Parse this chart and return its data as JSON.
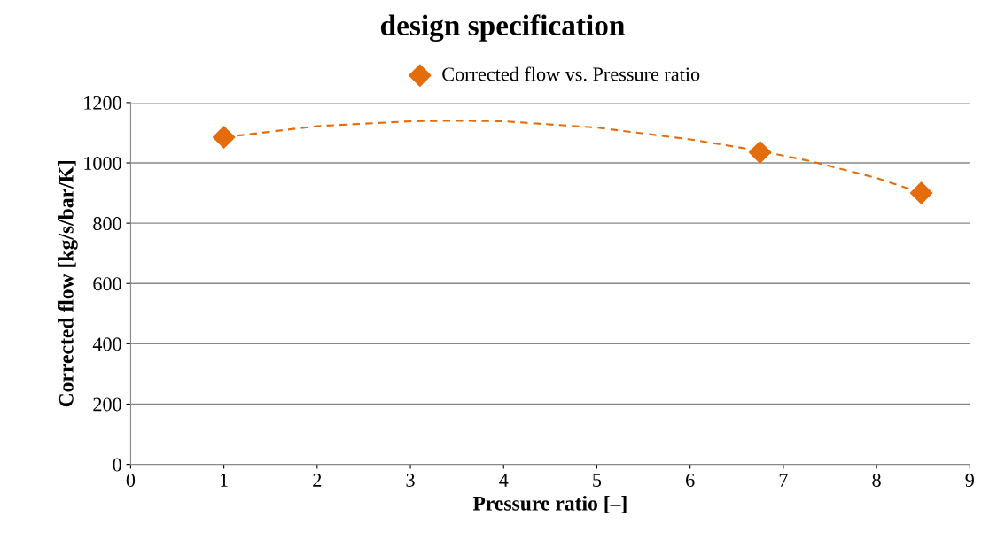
{
  "chart_data": {
    "type": "scatter",
    "title": "design specification",
    "xlabel": "Pressure ratio [–]",
    "ylabel": "Corrected flow [kg/s/bar/K]",
    "series": [
      {
        "name": "Corrected flow vs. Pressure ratio",
        "color": "#e46c0a",
        "marker": "diamond",
        "x": [
          1,
          6.75,
          8.48
        ],
        "values": [
          1085,
          1035,
          900
        ]
      },
      {
        "type": "line",
        "color": "#e46c0a",
        "line_style": "dashed",
        "x": [
          1,
          2,
          3,
          3.5,
          4,
          5,
          6,
          6.75,
          7.3,
          8,
          8.48
        ],
        "values": [
          1085,
          1122,
          1138,
          1140,
          1138,
          1117,
          1078,
          1040,
          1005,
          950,
          900
        ]
      }
    ],
    "xlim": [
      0,
      9
    ],
    "xticks": [
      0,
      1,
      2,
      3,
      4,
      5,
      6,
      7,
      8,
      9
    ],
    "ylim": [
      0,
      1200
    ],
    "yticks": [
      0,
      200,
      400,
      600,
      800,
      1000,
      1200
    ],
    "grid": "y",
    "legend": "top"
  }
}
